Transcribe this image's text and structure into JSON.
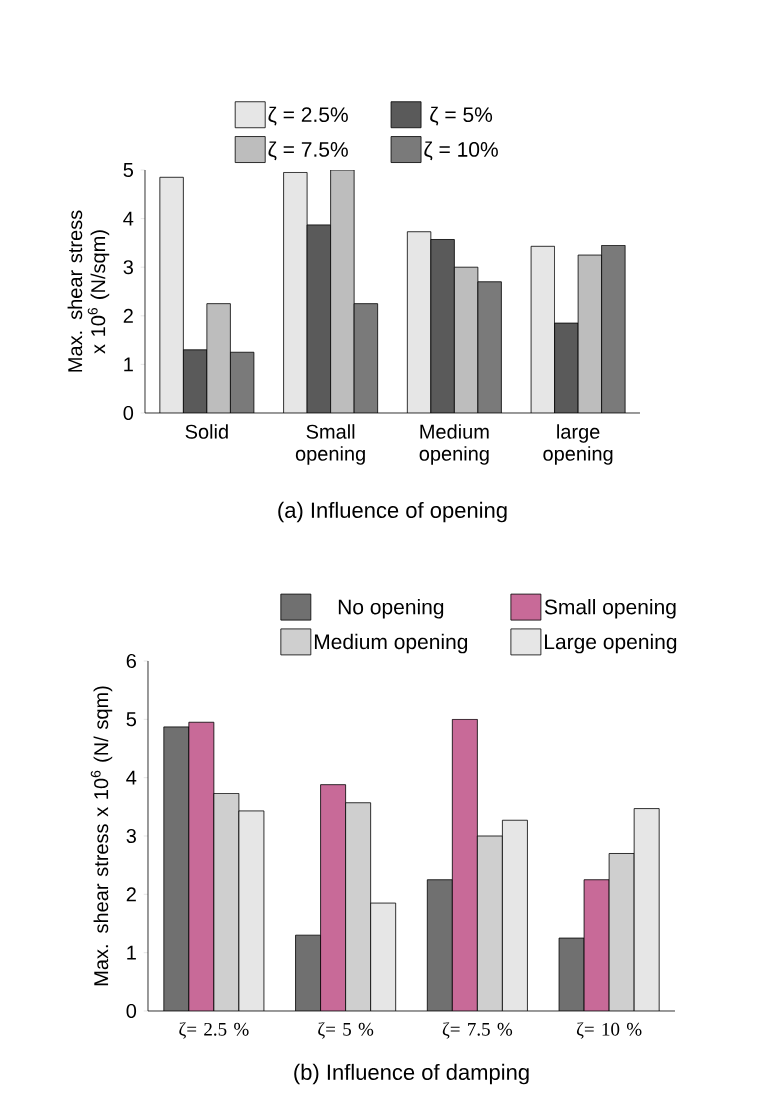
{
  "chart_data": [
    {
      "type": "bar",
      "title": "(a) Influence of opening",
      "ylabel": "Max. shear stress x 10$^{6}$ (N/sqm)",
      "categories": [
        "Solid",
        "Small opening",
        "Medium opening",
        "large opening"
      ],
      "ylim": [
        0,
        5
      ],
      "yticks": [
        0,
        1,
        2,
        3,
        4,
        5
      ],
      "legend": "top",
      "series": [
        {
          "name": "ζ = 2.5%",
          "color": "#e6e6e6",
          "values": [
            4.85,
            4.95,
            3.73,
            3.43
          ]
        },
        {
          "name": "ζ = 5%",
          "color": "#5a5a5a",
          "values": [
            1.3,
            3.87,
            3.57,
            1.85
          ]
        },
        {
          "name": "ζ = 7.5%",
          "color": "#bdbdbd",
          "values": [
            2.25,
            5.0,
            3.0,
            3.25
          ]
        },
        {
          "name": "ζ = 10%",
          "color": "#7a7a7a",
          "values": [
            1.25,
            2.25,
            2.7,
            3.45
          ]
        }
      ]
    },
    {
      "type": "bar",
      "title": "(b) Influence of damping",
      "ylabel": "Max. shear stress x 10$^{6}$ (N/ sqm)",
      "categories": [
        "ζ= 2.5 %",
        "ζ= 5 %",
        "ζ= 7.5 %",
        "ζ= 10 %"
      ],
      "ylim": [
        0,
        6
      ],
      "yticks": [
        0,
        1,
        2,
        3,
        4,
        5,
        6
      ],
      "legend": "top",
      "series": [
        {
          "name": "No opening",
          "color": "#707070",
          "values": [
            4.87,
            1.3,
            2.25,
            1.25
          ]
        },
        {
          "name": "Small  opening",
          "color": "#c86a98",
          "values": [
            4.95,
            3.88,
            5.0,
            2.25
          ]
        },
        {
          "name": "Medium opening",
          "color": "#cfcfcf",
          "values": [
            3.73,
            3.57,
            3.0,
            2.7
          ]
        },
        {
          "name": "Large opening",
          "color": "#e6e6e6",
          "values": [
            3.43,
            1.85,
            3.27,
            3.47
          ]
        }
      ]
    }
  ]
}
